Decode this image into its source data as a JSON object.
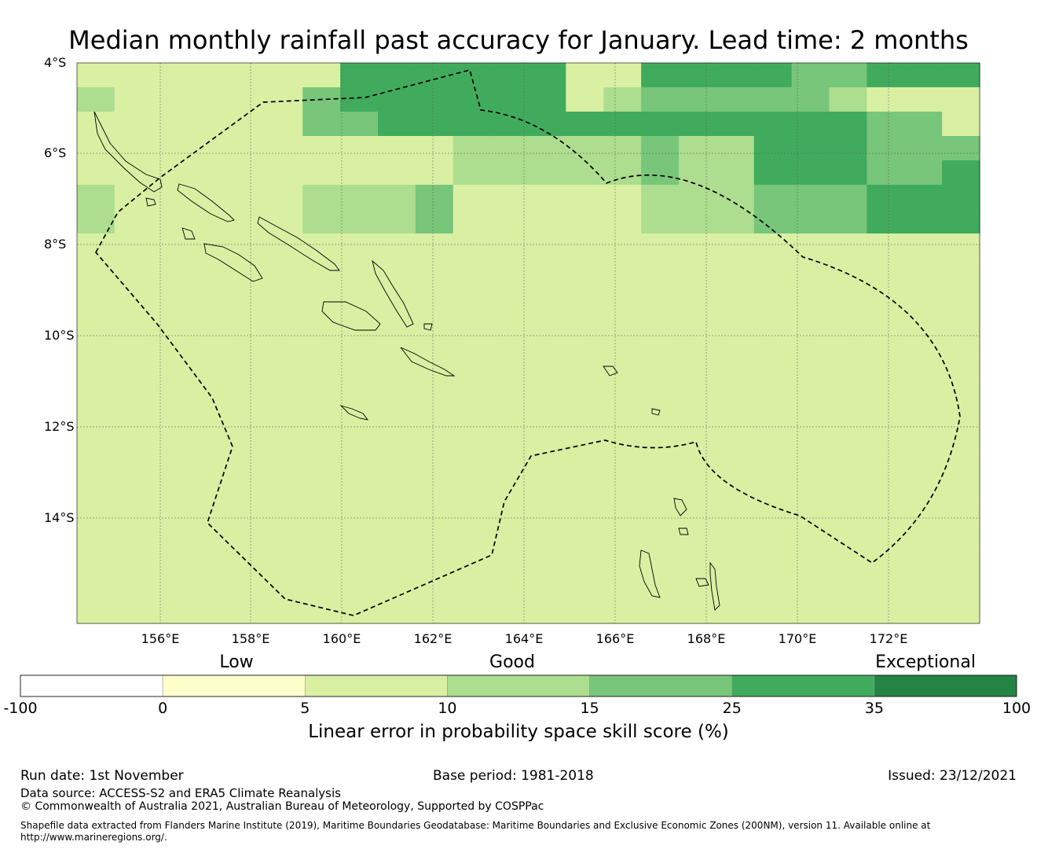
{
  "title": "Median monthly rainfall past accuracy for January. Lead time: 2 months",
  "map": {
    "lat_labels": [
      "4°S",
      "6°S",
      "8°S",
      "10°S",
      "12°S",
      "14°S"
    ],
    "lon_labels": [
      "156°E",
      "158°E",
      "160°E",
      "162°E",
      "164°E",
      "166°E",
      "168°E",
      "170°E",
      "172°E"
    ],
    "legend_categories": [
      "Low",
      "Good",
      "Exceptional"
    ],
    "boundary_style": "dashed maritime boundary (EEZ)",
    "grid_columns": 24,
    "grid_rows": 23,
    "grid_levels_note": "0=white(<0) 1=lightyellow(0-5) 2=(5-10) 3=(10-15) 4=(15-25) 5=(25-35) 6=(35-100)",
    "grid": [
      "222222255555522555544555",
      "322222455555523444443222",
      "222222445555555555555442",
      "222222222233333433555444",
      "222222222233333433555445",
      "322222333422222333444555",
      "322222333422222333444555",
      "222222222222222222222222",
      "222222222222222222222222",
      "222222222222222222222222",
      "222222222222222222222222",
      "222222222222222222222222",
      "222222222222222222222222",
      "222222222222222222222222",
      "222222222222222222222222",
      "222222222222222222222222",
      "222222222222222222222222",
      "222222222222222222222222",
      "222222222222222222222222",
      "222222222222222222222222",
      "222222222222222222222222",
      "222222222222222222222222",
      "222222222222222222222222"
    ]
  },
  "colorbar": {
    "colors": [
      "#ffffff",
      "#ffffcc",
      "#d9f0a3",
      "#addd8e",
      "#78c679",
      "#41ab5d",
      "#238443"
    ],
    "ticks": [
      "-100",
      "0",
      "5",
      "10",
      "15",
      "25",
      "35",
      "100"
    ],
    "title": "Linear error in probability space skill score (%)"
  },
  "footer": {
    "run_date": "Run date: 1st November",
    "base_period": "Base period: 1981-2018",
    "issued": "Issued: 23/12/2021",
    "data_source": "Data source: ACCESS-S2 and ERA5 Climate Reanalysis",
    "copyright": "© Commonwealth of Australia 2021, Australian Bureau of Meteorology, Supported by COSPPac",
    "shapefile_line1": "Shapefile data extracted from Flanders Marine Institute (2019), Maritime Boundaries Geodatabase: Maritime Boundaries and Exclusive Economic Zones (200NM), version 11. Available online at",
    "shapefile_line2": "http://www.marineregions.org/."
  }
}
